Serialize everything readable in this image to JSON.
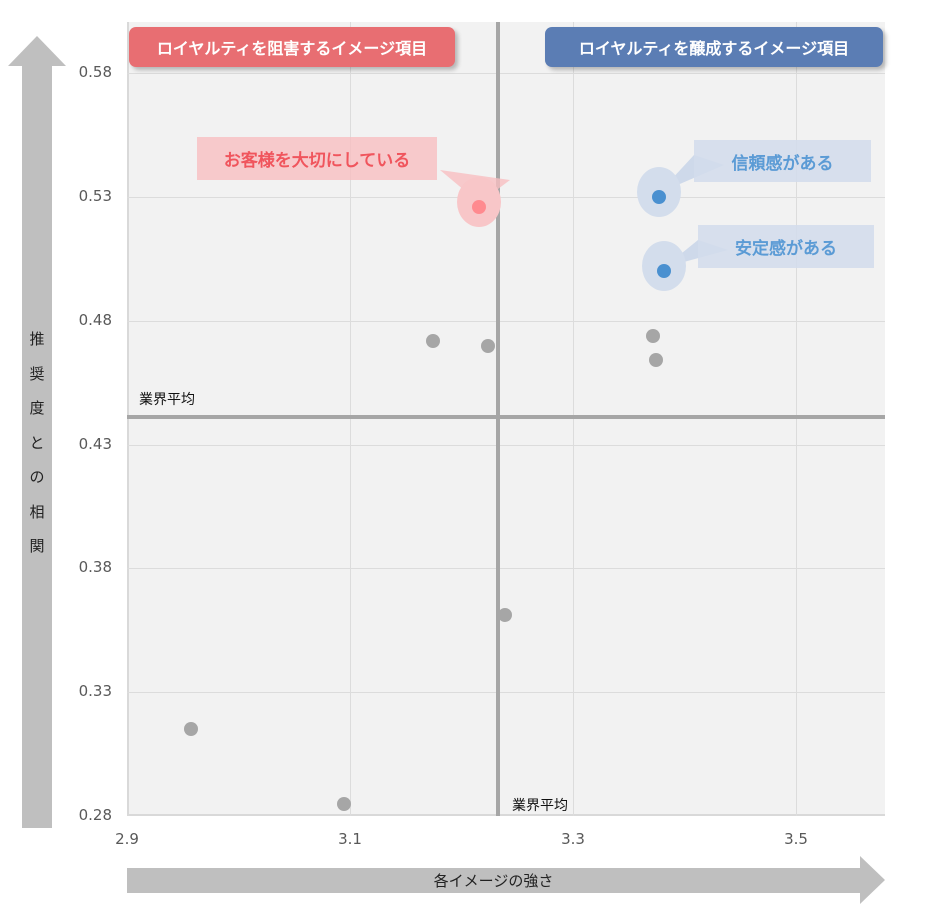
{
  "chart_data": {
    "type": "scatter",
    "title": "",
    "xlabel": "各イメージの強さ",
    "ylabel": "推奨度との相関",
    "xlim": [
      2.9,
      3.58
    ],
    "ylim": [
      0.28,
      0.6
    ],
    "x_ticks": [
      "2.9",
      "3.1",
      "3.3",
      "3.5"
    ],
    "y_ticks": [
      "0.58",
      "0.53",
      "0.48",
      "0.43",
      "0.38",
      "0.33",
      "0.28"
    ],
    "grid": true,
    "reference_lines": {
      "x_average": {
        "value": 3.233,
        "label": "業界平均"
      },
      "y_average": {
        "value": 0.441,
        "label": "業界平均"
      }
    },
    "quadrant_labels": {
      "top_left": "ロイヤルティを阻害するイメージ項目",
      "top_right": "ロイヤルティを醸成するイメージ項目"
    },
    "series": [
      {
        "name": "other",
        "color": "#a6a6a6",
        "points": [
          {
            "x": 2.957,
            "y": 0.315
          },
          {
            "x": 3.095,
            "y": 0.285
          },
          {
            "x": 3.174,
            "y": 0.472
          },
          {
            "x": 3.224,
            "y": 0.47
          },
          {
            "x": 3.239,
            "y": 0.361
          },
          {
            "x": 3.372,
            "y": 0.474
          },
          {
            "x": 3.374,
            "y": 0.464
          }
        ]
      },
      {
        "name": "inhibiting",
        "color": "#ff8a8f",
        "points": [
          {
            "x": 3.216,
            "y": 0.526,
            "label": "お客様を大切にしている"
          }
        ]
      },
      {
        "name": "fostering",
        "color": "#4a90d0",
        "points": [
          {
            "x": 3.377,
            "y": 0.53,
            "label": "信頼感がある"
          },
          {
            "x": 3.382,
            "y": 0.5,
            "label": "安定感がある"
          }
        ]
      }
    ]
  },
  "axes": {
    "y_label_chars": [
      "推",
      "奨",
      "度",
      "と",
      "の",
      "相",
      "関"
    ],
    "x_label": "各イメージの強さ",
    "avg_label_h": "業界平均",
    "avg_label_v": "業界平均"
  },
  "colors": {
    "inhibit_pill": "#e86e72",
    "foster_pill": "#5b7db4",
    "plot_bg": "#f2f2f2",
    "avg_line": "#a6a6a6"
  }
}
